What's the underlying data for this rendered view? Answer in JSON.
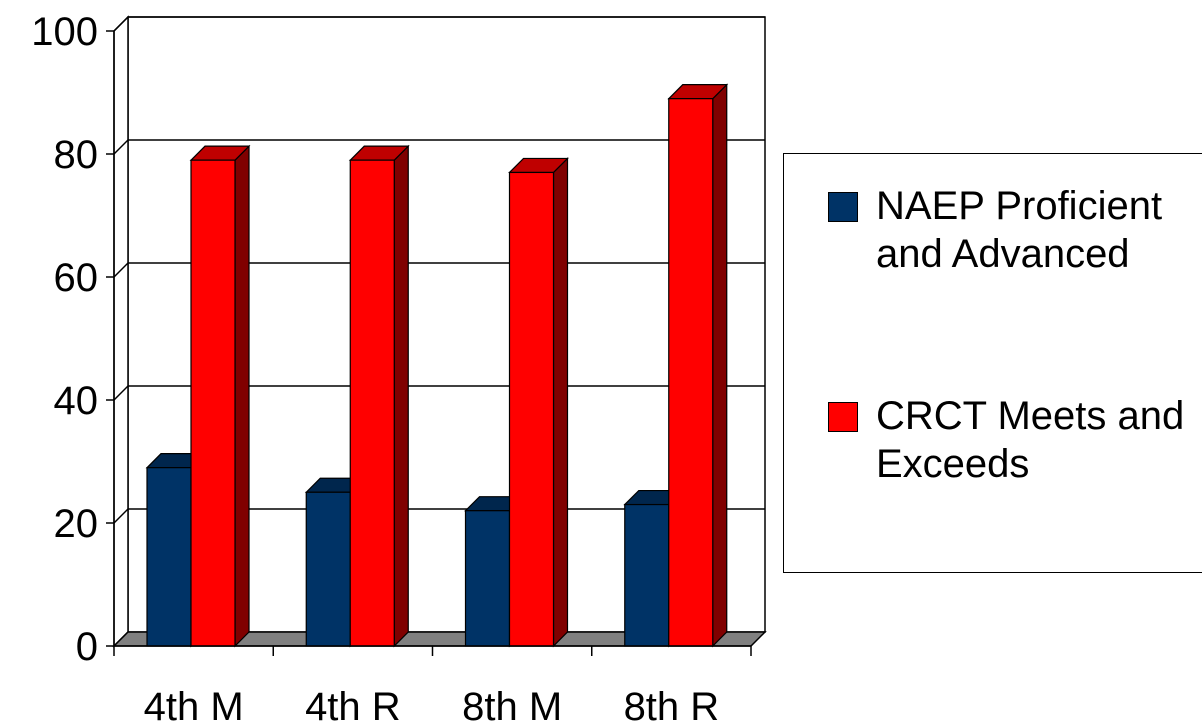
{
  "chart_data": {
    "type": "bar",
    "title": "",
    "xlabel": "",
    "ylabel": "",
    "categories": [
      "4th M",
      "4th R",
      "8th M",
      "8th R"
    ],
    "series": [
      {
        "name": "NAEP Proficient and Advanced",
        "values": [
          29,
          25,
          22,
          23
        ],
        "color": "#003366"
      },
      {
        "name": "CRCT Meets and Exceeds",
        "values": [
          79,
          79,
          77,
          89
        ],
        "color": "#ff0000"
      }
    ],
    "ylim": [
      0,
      100
    ],
    "yticks": [
      "0",
      "20",
      "40",
      "60",
      "80",
      "100"
    ],
    "grid": true,
    "legend_position": "right",
    "style": "3d-column"
  }
}
